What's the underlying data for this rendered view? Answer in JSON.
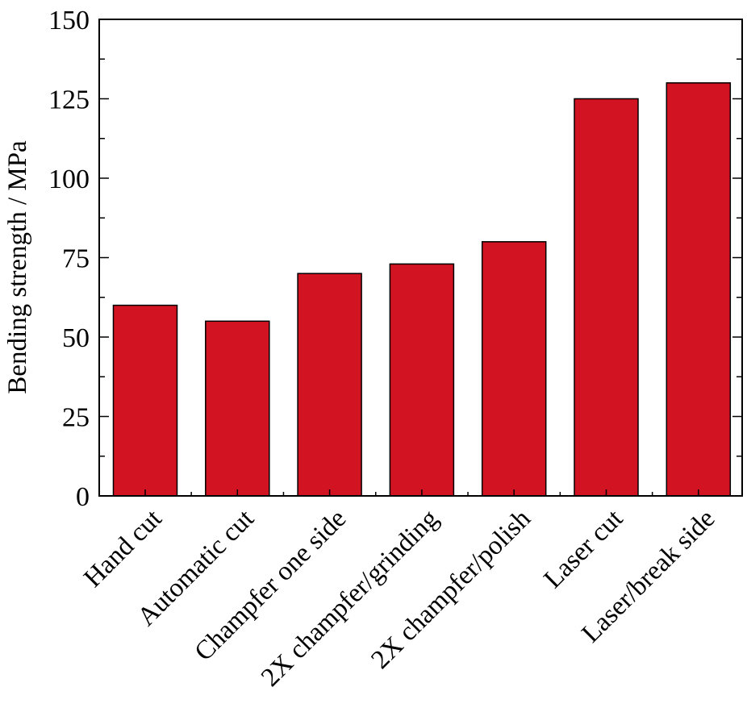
{
  "chart_data": {
    "type": "bar",
    "title": "",
    "xlabel": "",
    "ylabel": "Bending strength / MPa",
    "categories": [
      "Hand cut",
      "Automatic cut",
      "Champfer one side",
      "2X champfer/grinding",
      "2X champfer/polish",
      "Laser cut",
      "Laser/break side"
    ],
    "values": [
      60,
      55,
      70,
      73,
      80,
      125,
      130
    ],
    "ylim": [
      0,
      150
    ],
    "yticks": [
      0,
      25,
      50,
      75,
      100,
      125,
      150
    ],
    "ytick_labels": [
      "0",
      "25",
      "50",
      "75",
      "100",
      "125",
      "150"
    ],
    "grid": false,
    "legend": "none",
    "bar_color": "#d21321"
  }
}
